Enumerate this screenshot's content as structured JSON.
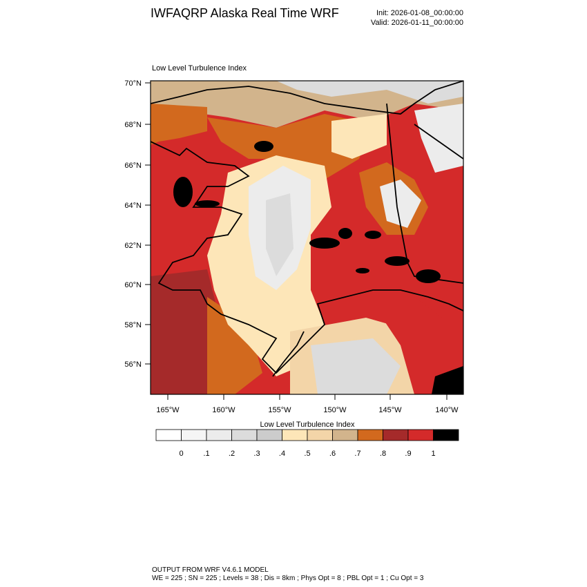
{
  "header": {
    "title": "IWFAQRP Alaska Real Time WRF",
    "init": "Init: 2026-01-08_00:00:00",
    "valid": "Valid: 2026-01-11_00:00:00"
  },
  "map": {
    "title": "Low Level Turbulence Index",
    "lat_labels": [
      "70°N",
      "68°N",
      "66°N",
      "64°N",
      "62°N",
      "60°N",
      "58°N",
      "56°N"
    ],
    "lon_labels": [
      "165°W",
      "160°W",
      "155°W",
      "150°W",
      "145°W",
      "140°W"
    ]
  },
  "colorbar": {
    "title": "Low Level Turbulence Index",
    "labels": [
      "0",
      ".1",
      ".2",
      ".3",
      ".4",
      ".5",
      ".6",
      ".7",
      ".8",
      ".9",
      "1"
    ],
    "colors": [
      "#ffffff",
      "#f5f5f5",
      "#ececec",
      "#dcdcdc",
      "#cccccc",
      "#fde6b8",
      "#f3d5a8",
      "#d2b48c",
      "#d2691e",
      "#a52a2a",
      "#d42a2a",
      "#000000"
    ]
  },
  "footer": {
    "line1": "OUTPUT FROM WRF V4.6.1 MODEL",
    "line2": "WE = 225 ; SN = 225 ; Levels = 38 ; Dis = 8km ; Phys Opt = 8 ; PBL Opt = 1 ; Cu Opt = 3"
  }
}
